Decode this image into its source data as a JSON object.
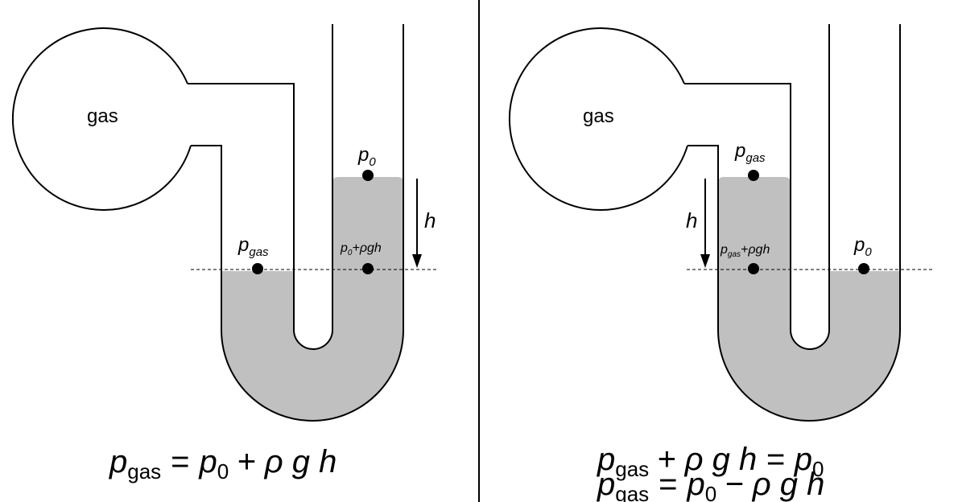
{
  "left_panel": {
    "bulb_label": "gas",
    "point_top": {
      "sym": "p",
      "sub": "0"
    },
    "point_level_left": {
      "sym": "p",
      "sub": "gas"
    },
    "point_level_right": {
      "sym": "p",
      "sub": "0",
      "tail": "+ρgh"
    },
    "height_label": "h",
    "equation": {
      "lhs_sym": "p",
      "lhs_sub": "gas",
      "eq": "=",
      "rhs_sym": "p",
      "rhs_sub": "0",
      "rhs_tail": "+ ρ g h"
    }
  },
  "right_panel": {
    "bulb_label": "gas",
    "point_top": {
      "sym": "p",
      "sub": "gas"
    },
    "point_level_left": {
      "sym": "p",
      "sub": "gas",
      "tail": "+ρgh"
    },
    "point_level_right": {
      "sym": "p",
      "sub": "0"
    },
    "height_label": "h",
    "equation1": {
      "lhs_sym": "p",
      "lhs_sub": "gas",
      "lhs_tail": "+ ρ g h =",
      "rhs_sym": "p",
      "rhs_sub": "0"
    },
    "equation2": {
      "lhs_sym": "p",
      "lhs_sub": "gas",
      "eq": "=",
      "rhs_sym": "p",
      "rhs_sub": "0",
      "rhs_tail": "− ρ g h"
    }
  },
  "colors": {
    "liquid": "#c0c0c0",
    "ink": "#000000",
    "background": "#ffffff"
  }
}
